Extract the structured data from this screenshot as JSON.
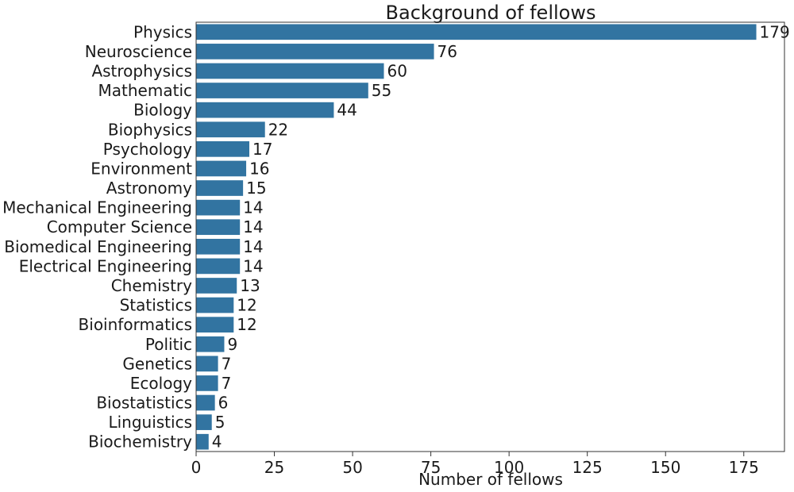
{
  "chart_data": {
    "type": "bar",
    "orientation": "horizontal",
    "title": "Background of fellows",
    "xlabel": "Number of fellows",
    "ylabel": "",
    "xlim": [
      0,
      188
    ],
    "xticks": [
      0,
      25,
      50,
      75,
      100,
      125,
      150,
      175
    ],
    "grid": false,
    "bar_color": "#3274a1",
    "categories": [
      "Physics",
      "Neuroscience",
      "Astrophysics",
      "Mathematic",
      "Biology",
      "Biophysics",
      "Psychology",
      "Environment",
      "Astronomy",
      "Mechanical Engineering",
      "Computer Science",
      "Biomedical Engineering",
      "Electrical Engineering",
      "Chemistry",
      "Statistics",
      "Bioinformatics",
      "Politic",
      "Genetics",
      "Ecology",
      "Biostatistics",
      "Linguistics",
      "Biochemistry"
    ],
    "values": [
      179,
      76,
      60,
      55,
      44,
      22,
      17,
      16,
      15,
      14,
      14,
      14,
      14,
      13,
      12,
      12,
      9,
      7,
      7,
      6,
      5,
      4
    ]
  }
}
